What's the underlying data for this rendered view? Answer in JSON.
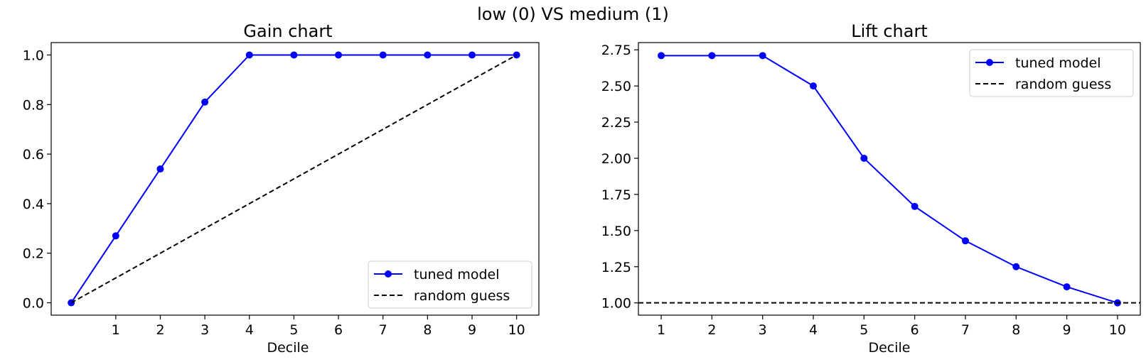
{
  "figure": {
    "title": "low (0) VS medium (1)"
  },
  "colors": {
    "model": "#0000ff",
    "random": "#000000"
  },
  "chart_data": [
    {
      "id": "gain",
      "type": "line",
      "title": "Gain chart",
      "xlabel": "Decile",
      "ylabel": "",
      "xlim": [
        -0.45,
        10.5
      ],
      "ylim": [
        -0.05,
        1.05
      ],
      "xticks": [
        1,
        2,
        3,
        4,
        5,
        6,
        7,
        8,
        9,
        10
      ],
      "yticks": [
        0.0,
        0.2,
        0.4,
        0.6,
        0.8,
        1.0
      ],
      "ytick_decimals": 1,
      "grid": false,
      "legend_position": "bottom-right",
      "series": [
        {
          "name": "tuned model",
          "style": "solid-markers",
          "x": [
            0,
            1,
            2,
            3,
            4,
            5,
            6,
            7,
            8,
            9,
            10
          ],
          "y": [
            0.0,
            0.27,
            0.54,
            0.81,
            1.0,
            1.0,
            1.0,
            1.0,
            1.0,
            1.0,
            1.0
          ]
        },
        {
          "name": "random guess",
          "style": "dashed",
          "x": [
            0,
            10
          ],
          "y": [
            0.0,
            1.0
          ]
        }
      ]
    },
    {
      "id": "lift",
      "type": "line",
      "title": "Lift chart",
      "xlabel": "Decile",
      "ylabel": "",
      "xlim": [
        0.55,
        10.45
      ],
      "ylim": [
        0.915,
        2.8
      ],
      "xticks": [
        1,
        2,
        3,
        4,
        5,
        6,
        7,
        8,
        9,
        10
      ],
      "yticks": [
        1.0,
        1.25,
        1.5,
        1.75,
        2.0,
        2.25,
        2.5,
        2.75
      ],
      "ytick_decimals": 2,
      "grid": false,
      "legend_position": "top-right",
      "series": [
        {
          "name": "tuned model",
          "style": "solid-markers",
          "x": [
            1,
            2,
            3,
            4,
            5,
            6,
            7,
            8,
            9,
            10
          ],
          "y": [
            2.71,
            2.71,
            2.71,
            2.5,
            2.0,
            1.667,
            1.429,
            1.25,
            1.111,
            1.0
          ]
        },
        {
          "name": "random guess",
          "style": "dashed-horizontal",
          "x": [
            0.55,
            10.45
          ],
          "y": [
            1.0,
            1.0
          ]
        }
      ]
    }
  ]
}
